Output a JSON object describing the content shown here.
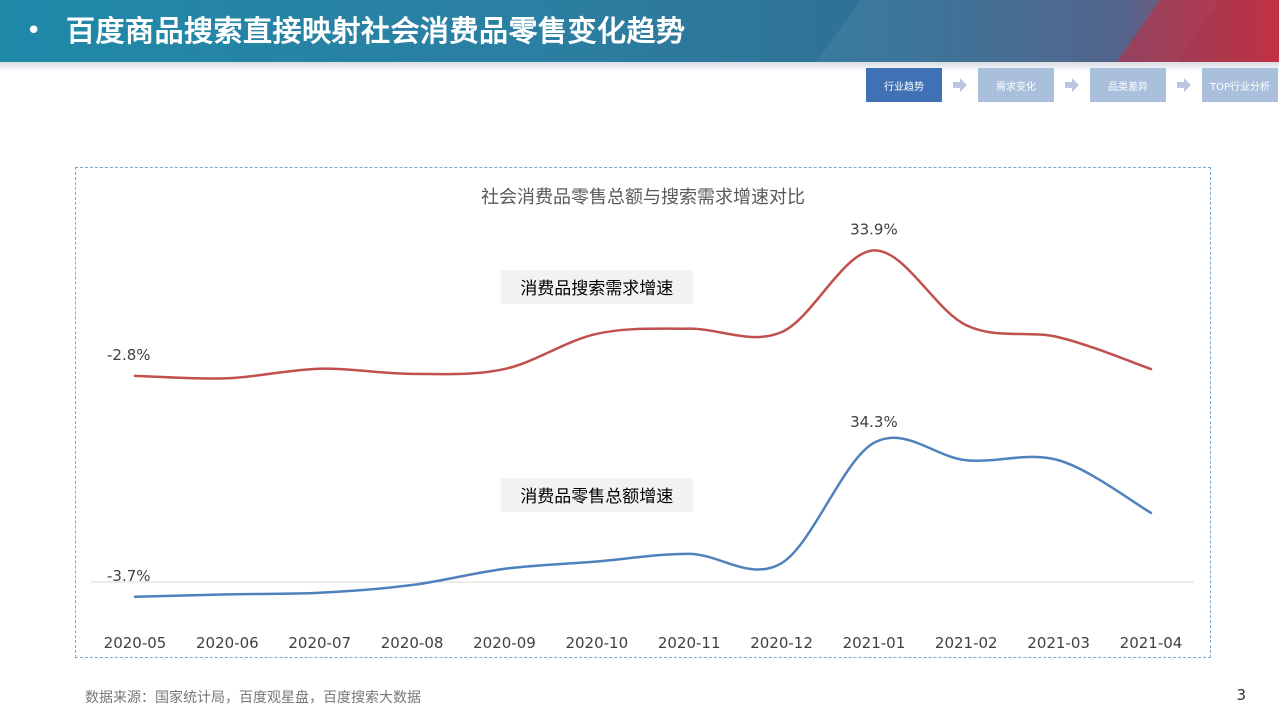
{
  "header": {
    "bullet": "•",
    "title": "百度商品搜索直接映射社会消费品零售变化趋势"
  },
  "steps": [
    {
      "label": "行业趋势",
      "active": true
    },
    {
      "label": "需求变化",
      "active": false
    },
    {
      "label": "品类差异",
      "active": false
    },
    {
      "label": "TOP行业分析",
      "active": false
    }
  ],
  "chart_data": {
    "type": "line",
    "title": "社会消费品零售总额与搜索需求增速对比",
    "categories": [
      "2020-05",
      "2020-06",
      "2020-07",
      "2020-08",
      "2020-09",
      "2020-10",
      "2020-11",
      "2020-12",
      "2021-01",
      "2021-02",
      "2021-03",
      "2021-04"
    ],
    "series": [
      {
        "name": "消费品搜索需求增速",
        "color": "#c0504d",
        "values": [
          -2.8,
          -3.5,
          -0.7,
          -2.2,
          -0.8,
          9.5,
          11.0,
          10.0,
          33.9,
          12.0,
          8.5,
          -0.8
        ],
        "labels": [
          {
            "index": 0,
            "text": "-2.8%"
          },
          {
            "index": 8,
            "text": "33.9%"
          }
        ]
      },
      {
        "name": "消费品零售总额增速",
        "color": "#4f81bd",
        "values": [
          -3.7,
          -3.1,
          -2.7,
          -0.8,
          3.2,
          5.0,
          6.9,
          4.6,
          34.3,
          30.0,
          30.0,
          17.0
        ],
        "labels": [
          {
            "index": 0,
            "text": "-3.7%"
          },
          {
            "index": 8,
            "text": "34.3%"
          }
        ]
      }
    ],
    "xlabel": "",
    "ylabel": "",
    "legend": "inline-labels"
  },
  "footer": {
    "source": "数据来源：国家统计局，百度观星盘，百度搜索大数据",
    "page": "3"
  }
}
